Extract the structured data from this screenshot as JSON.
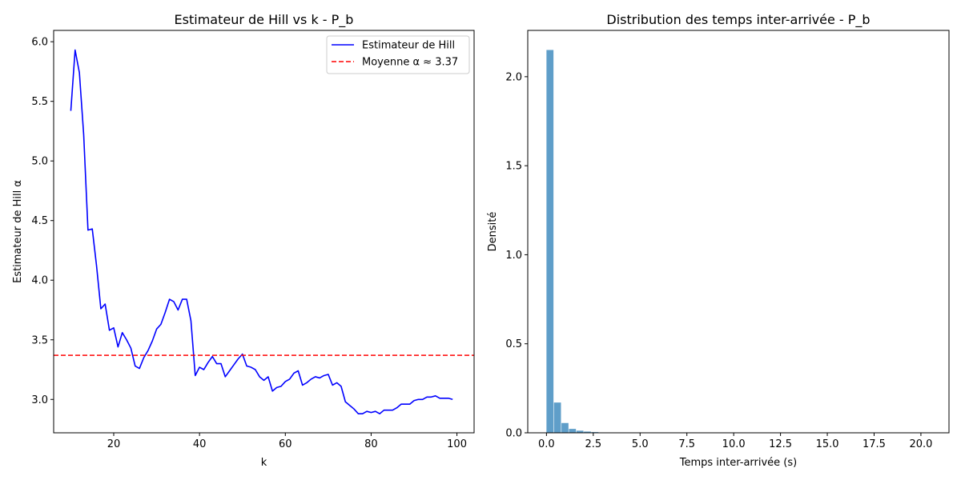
{
  "chart_data": [
    {
      "type": "line",
      "title": "Estimateur de Hill vs k - P_b",
      "xlabel": "k",
      "ylabel": "Estimateur de Hill α",
      "xlim": [
        6,
        104
      ],
      "ylim": [
        2.72,
        6.095
      ],
      "xticks": [
        20,
        40,
        60,
        80,
        100
      ],
      "yticks": [
        3.0,
        3.5,
        4.0,
        4.5,
        5.0,
        5.5,
        6.0
      ],
      "ytick_labels": [
        "3.0",
        "3.5",
        "4.0",
        "4.5",
        "5.0",
        "5.5",
        "6.0"
      ],
      "legend_position": "top-right",
      "grid": false,
      "series": [
        {
          "name": "Estimateur de Hill",
          "color": "#0000ff",
          "style": "solid",
          "x": [
            10,
            11,
            12,
            13,
            14,
            15,
            16,
            17,
            18,
            19,
            20,
            21,
            22,
            23,
            24,
            25,
            26,
            27,
            28,
            29,
            30,
            31,
            32,
            33,
            34,
            35,
            36,
            37,
            38,
            39,
            40,
            41,
            42,
            43,
            44,
            45,
            46,
            47,
            48,
            49,
            50,
            51,
            52,
            53,
            54,
            55,
            56,
            57,
            58,
            59,
            60,
            61,
            62,
            63,
            64,
            65,
            66,
            67,
            68,
            69,
            70,
            71,
            72,
            73,
            74,
            75,
            76,
            77,
            78,
            79,
            80,
            81,
            82,
            83,
            84,
            85,
            86,
            87,
            88,
            89,
            90,
            91,
            92,
            93,
            94,
            95,
            96,
            97,
            98,
            99
          ],
          "y": [
            5.42,
            5.93,
            5.74,
            5.22,
            4.42,
            4.43,
            4.12,
            3.76,
            3.8,
            3.58,
            3.6,
            3.44,
            3.56,
            3.5,
            3.43,
            3.28,
            3.26,
            3.35,
            3.41,
            3.49,
            3.59,
            3.63,
            3.73,
            3.84,
            3.82,
            3.75,
            3.84,
            3.84,
            3.66,
            3.2,
            3.27,
            3.25,
            3.31,
            3.36,
            3.3,
            3.3,
            3.19,
            3.24,
            3.29,
            3.34,
            3.38,
            3.28,
            3.27,
            3.25,
            3.19,
            3.16,
            3.19,
            3.07,
            3.1,
            3.11,
            3.15,
            3.17,
            3.22,
            3.24,
            3.12,
            3.14,
            3.17,
            3.19,
            3.18,
            3.2,
            3.21,
            3.12,
            3.14,
            3.11,
            2.98,
            2.95,
            2.92,
            2.88,
            2.88,
            2.9,
            2.89,
            2.9,
            2.88,
            2.91,
            2.91,
            2.91,
            2.93,
            2.96,
            2.96,
            2.96,
            2.99,
            3.0,
            3.0,
            3.02,
            3.02,
            3.03,
            3.01,
            3.01,
            3.01,
            3.0
          ]
        },
        {
          "name": "Moyenne α ≈ 3.37",
          "color": "#ff0000",
          "style": "dashed",
          "y_constant": 3.37
        }
      ]
    },
    {
      "type": "histogram",
      "title": "Distribution des temps inter-arrivée - P_b",
      "xlabel": "Temps inter-arrivée (s)",
      "ylabel": "Densité",
      "xlim": [
        -1.0,
        21.5
      ],
      "ylim": [
        0,
        2.26
      ],
      "xticks": [
        0.0,
        2.5,
        5.0,
        7.5,
        10.0,
        12.5,
        15.0,
        17.5,
        20.0
      ],
      "xtick_labels": [
        "0.0",
        "2.5",
        "5.0",
        "7.5",
        "10.0",
        "12.5",
        "15.0",
        "17.5",
        "20.0"
      ],
      "yticks": [
        0.0,
        0.5,
        1.0,
        1.5,
        2.0
      ],
      "ytick_labels": [
        "0.0",
        "0.5",
        "1.0",
        "1.5",
        "2.0"
      ],
      "color": "#5f9ec9",
      "bin_edges": [
        0.0,
        0.4,
        0.8,
        1.2,
        1.6,
        2.0,
        2.4,
        2.8
      ],
      "values": [
        2.15,
        0.17,
        0.055,
        0.022,
        0.012,
        0.007,
        0.004
      ]
    }
  ]
}
